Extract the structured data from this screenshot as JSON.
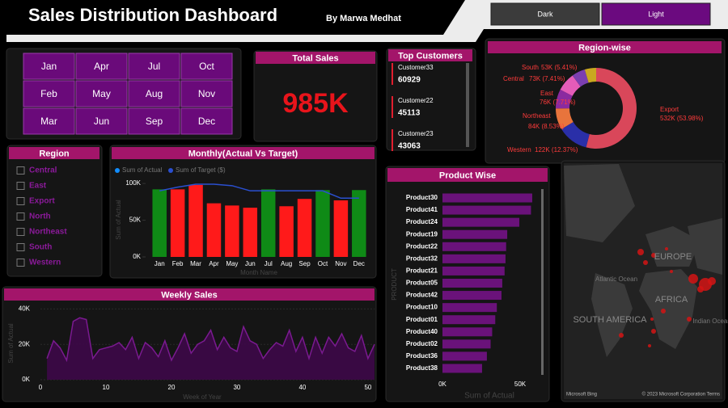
{
  "header": {
    "title": "Sales Distribution Dashboard",
    "author": "By Marwa Medhat",
    "buttons": [
      "Dark",
      "Light"
    ]
  },
  "month_slicer": [
    "Jan",
    "Feb",
    "Mar",
    "Apr",
    "May",
    "Jun",
    "Jul",
    "Aug",
    "Sep",
    "Oct",
    "Nov",
    "Dec"
  ],
  "kpi": {
    "title": "Total Sales",
    "value": "985K"
  },
  "top_customers": {
    "title": "Top Customers",
    "items": [
      {
        "name": "Customer33",
        "value": 60929
      },
      {
        "name": "Customer22",
        "value": 45113
      },
      {
        "name": "Customer23",
        "value": 43063
      }
    ]
  },
  "region_slicer": {
    "title": "Region",
    "items": [
      "Central",
      "East",
      "Export",
      "North",
      "Northeast",
      "South",
      "Western"
    ]
  },
  "map": {
    "labels": [
      "EUROPE",
      "Atlantic Ocean",
      "AFRICA",
      "SOUTH AMERICA",
      "Indian Ocean"
    ],
    "brand": "Microsoft Bing",
    "credit": "© 2023 Microsoft Corporation Terms"
  },
  "chart_data": [
    {
      "type": "bar",
      "title": "Monthly(Actual Vs Target)",
      "xlabel": "Month Name",
      "ylabel": "Sum of Actual",
      "categories": [
        "Jan",
        "Feb",
        "Mar",
        "Apr",
        "May",
        "Jun",
        "Jul",
        "Aug",
        "Sep",
        "Oct",
        "Nov",
        "Dec"
      ],
      "series": [
        {
          "name": "Sum of Actual",
          "color": "#118dff",
          "type": "bar",
          "values": [
            92000,
            92000,
            98000,
            73000,
            70000,
            67000,
            92000,
            69000,
            79000,
            91000,
            77000,
            91000
          ],
          "bar_colors": [
            "#0f8a16",
            "#ff1a1a",
            "#ff1a1a",
            "#ff1a1a",
            "#ff1a1a",
            "#ff1a1a",
            "#0f8a16",
            "#ff1a1a",
            "#ff1a1a",
            "#0f8a16",
            "#ff1a1a",
            "#0f8a16"
          ]
        },
        {
          "name": "Sum of Target ($)",
          "color": "#2a4fd0",
          "type": "line",
          "values": [
            90000,
            95000,
            99000,
            99000,
            97000,
            90000,
            90000,
            90000,
            90000,
            90000,
            80000,
            80000
          ]
        }
      ],
      "ylim": [
        0,
        110000
      ],
      "yticks": [
        {
          "value": 0,
          "label": "0K"
        },
        {
          "value": 50000,
          "label": "50K"
        },
        {
          "value": 100000,
          "label": "100K"
        }
      ]
    },
    {
      "type": "area",
      "title": "Weekly Sales",
      "xlabel": "Week of Year",
      "ylabel": "Sum of Actual",
      "color": "#7a1a90",
      "x": [
        1,
        2,
        3,
        4,
        5,
        6,
        7,
        8,
        9,
        10,
        11,
        12,
        13,
        14,
        15,
        16,
        17,
        18,
        19,
        20,
        21,
        22,
        23,
        24,
        25,
        26,
        27,
        28,
        29,
        30,
        31,
        32,
        33,
        34,
        35,
        36,
        37,
        38,
        39,
        40,
        41,
        42,
        43,
        44,
        45,
        46,
        47,
        48,
        49,
        50,
        51
      ],
      "values": [
        12000,
        22000,
        18000,
        11000,
        33000,
        35000,
        34000,
        12000,
        17000,
        18000,
        19000,
        21000,
        17000,
        24000,
        12000,
        21000,
        18000,
        13000,
        22000,
        11000,
        18000,
        26000,
        15000,
        20000,
        22000,
        28000,
        17000,
        24000,
        18000,
        16000,
        30000,
        22000,
        20000,
        12000,
        17000,
        21000,
        19000,
        28000,
        16000,
        24000,
        12000,
        24000,
        15000,
        24000,
        19000,
        26000,
        18000,
        16000,
        25000,
        12000,
        20000
      ],
      "xlim": [
        0,
        51
      ],
      "xticks": [
        0,
        10,
        20,
        30,
        40,
        50
      ],
      "ylim": [
        0,
        42000
      ],
      "yticks": [
        {
          "value": 0,
          "label": "0K"
        },
        {
          "value": 20000,
          "label": "20K"
        },
        {
          "value": 40000,
          "label": "40K"
        }
      ]
    },
    {
      "type": "hbar",
      "title": "Product Wise",
      "xlabel": "Sum of Actual",
      "ylabel": "PRODUCT",
      "color": "#6a127a",
      "categories": [
        "Product30",
        "Product41",
        "Product24",
        "Product19",
        "Product22",
        "Product32",
        "Product21",
        "Product05",
        "Product42",
        "Product10",
        "Product01",
        "Product40",
        "Product02",
        "Product36",
        "Product38"
      ],
      "values": [
        57800,
        57000,
        49500,
        41700,
        41000,
        40600,
        40000,
        38500,
        38000,
        35000,
        34000,
        32000,
        31000,
        28600,
        25500
      ],
      "xlim": [
        0,
        60000
      ],
      "xticks": [
        {
          "value": 0,
          "label": "0K"
        },
        {
          "value": 50000,
          "label": "50K"
        }
      ]
    },
    {
      "type": "donut",
      "title": "Region-wise",
      "categories": [
        "Export",
        "Western",
        "Northeast",
        "East",
        "Central",
        "South",
        null
      ],
      "values": [
        532000,
        122000,
        84000,
        76000,
        73000,
        53000,
        45000
      ],
      "value_labels": [
        "532K (53.98%)",
        "122K (12.37%)",
        "84K (8.53%)",
        "76K (7.71%)",
        "73K (7.41%)",
        "53K (5.41%)",
        null
      ],
      "colors": [
        "#d9475a",
        "#2a2fa8",
        "#e8743c",
        "#8a2aa0",
        "#e45cb8",
        "#7b3fb0",
        "#c9a820"
      ]
    }
  ]
}
